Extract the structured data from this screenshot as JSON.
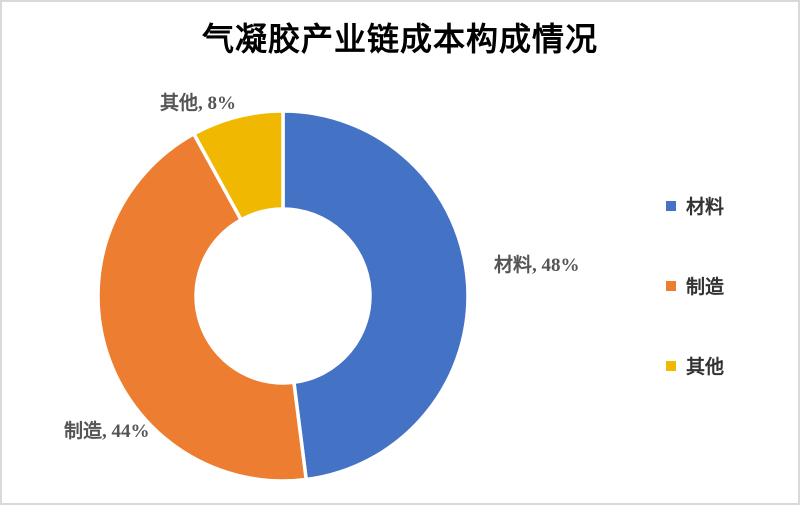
{
  "title": "气凝胶产业链成本构成情况",
  "chart_data": {
    "type": "pie",
    "subtype": "donut",
    "title": "气凝胶产业链成本构成情况",
    "categories": [
      "材料",
      "制造",
      "其他"
    ],
    "values": [
      48,
      44,
      8
    ],
    "unit": "%",
    "colors": [
      "#4472C4",
      "#ED7D31",
      "#F0B800"
    ],
    "data_labels": [
      "材料, 48%",
      "制造, 44%",
      "其他, 8%"
    ],
    "legend_position": "right",
    "donut_hole_ratio": 0.47,
    "start_angle_deg": 0,
    "direction": "clockwise",
    "slice_gap_color": "#ffffff"
  },
  "data_labels": {
    "material": "材料, 48%",
    "manufacturing": "制造, 44%",
    "other": "其他, 8%"
  },
  "legend": {
    "items": [
      {
        "label": "材料",
        "color": "#4472C4"
      },
      {
        "label": "制造",
        "color": "#ED7D31"
      },
      {
        "label": "其他",
        "color": "#F0B800"
      }
    ]
  }
}
